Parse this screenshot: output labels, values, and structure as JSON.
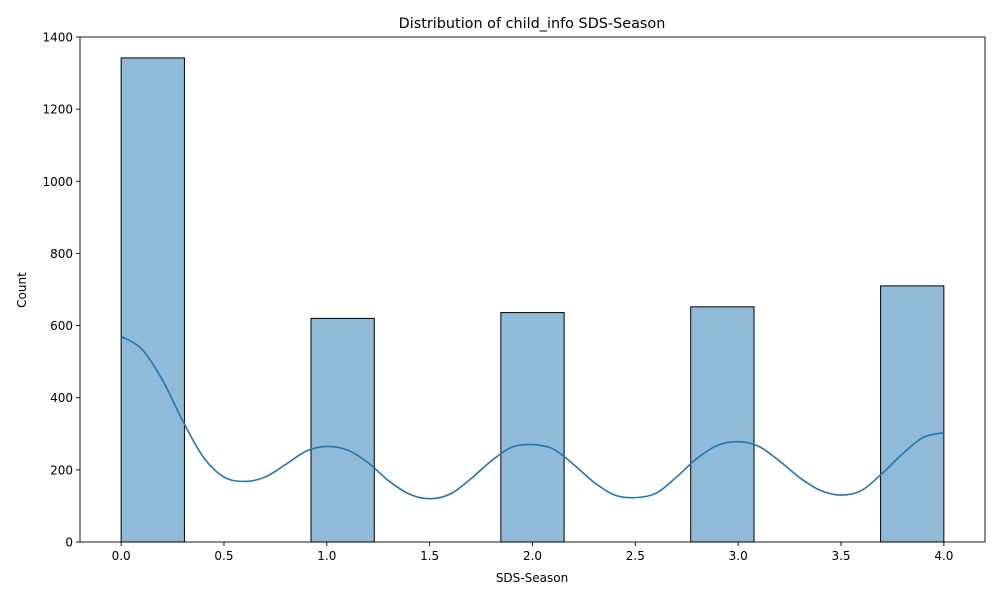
{
  "chart_data": {
    "type": "bar",
    "subtype": "histogram-with-kde",
    "title": "Distribution of child_info SDS-Season",
    "xlabel": "SDS-Season",
    "ylabel": "Count",
    "xlim": [
      -0.2,
      4.2
    ],
    "ylim": [
      0,
      1400
    ],
    "xticks": [
      0.0,
      0.5,
      1.0,
      1.5,
      2.0,
      2.5,
      3.0,
      3.5,
      4.0
    ],
    "xtick_labels": [
      "0.0",
      "0.5",
      "1.0",
      "1.5",
      "2.0",
      "2.5",
      "3.0",
      "3.5",
      "4.0"
    ],
    "yticks": [
      0,
      200,
      400,
      600,
      800,
      1000,
      1200,
      1400
    ],
    "ytick_labels": [
      "0",
      "200",
      "400",
      "600",
      "800",
      "1000",
      "1200",
      "1400"
    ],
    "grid": false,
    "bars": [
      {
        "x_start": 0.0,
        "x_end": 0.3077,
        "value": 1342
      },
      {
        "x_start": 0.9231,
        "x_end": 1.2308,
        "value": 620
      },
      {
        "x_start": 1.8462,
        "x_end": 2.1538,
        "value": 636
      },
      {
        "x_start": 2.7692,
        "x_end": 3.0769,
        "value": 652
      },
      {
        "x_start": 3.6923,
        "x_end": 4.0,
        "value": 710
      }
    ],
    "kde": {
      "x": [
        0.0,
        0.1,
        0.2,
        0.3,
        0.4,
        0.5,
        0.6,
        0.7,
        0.8,
        0.9,
        1.0,
        1.1,
        1.2,
        1.3,
        1.4,
        1.5,
        1.6,
        1.7,
        1.8,
        1.9,
        2.0,
        2.1,
        2.2,
        2.3,
        2.4,
        2.5,
        2.6,
        2.7,
        2.8,
        2.9,
        3.0,
        3.1,
        3.2,
        3.3,
        3.4,
        3.5,
        3.6,
        3.7,
        3.8,
        3.9,
        4.0
      ],
      "y": [
        570,
        535,
        450,
        335,
        235,
        180,
        168,
        180,
        215,
        252,
        265,
        255,
        220,
        170,
        133,
        120,
        133,
        175,
        225,
        263,
        270,
        258,
        215,
        165,
        130,
        123,
        135,
        180,
        232,
        268,
        278,
        265,
        225,
        178,
        143,
        130,
        143,
        190,
        245,
        290,
        303
      ]
    },
    "colors": {
      "bar_fill": "#8db8da",
      "line": "#1f77b4"
    }
  }
}
